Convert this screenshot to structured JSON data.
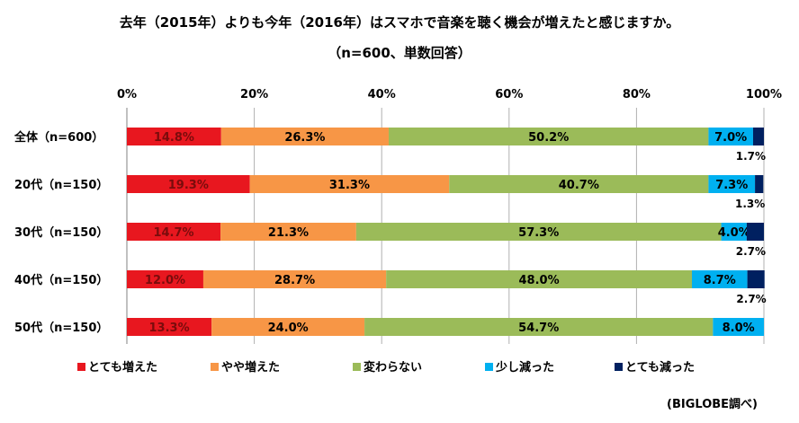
{
  "chart_data": {
    "type": "bar",
    "orientation": "horizontal-stacked-percent",
    "title": "去年（2015年）よりも今年（2016年）はスマホで音楽を聴く機会が増えたと感じますか。",
    "subtitle": "（n=600、単数回答）",
    "xlim": [
      0,
      100
    ],
    "x_ticks": [
      "0%",
      "20%",
      "40%",
      "60%",
      "80%",
      "100%"
    ],
    "grid": true,
    "legend_position": "bottom",
    "categories": [
      "全体（n=600）",
      "20代（n=150）",
      "30代（n=150）",
      "40代（n=150）",
      "50代（n=150）"
    ],
    "series": [
      {
        "name": "とても増えた",
        "color": "#e8171f",
        "values": [
          14.8,
          19.3,
          14.7,
          12.0,
          13.3
        ],
        "labels": [
          "14.8%",
          "19.3%",
          "14.7%",
          "12.0%",
          "13.3%"
        ]
      },
      {
        "name": "やや増えた",
        "color": "#f79646",
        "values": [
          26.3,
          31.3,
          21.3,
          28.7,
          24.0
        ],
        "labels": [
          "26.3%",
          "31.3%",
          "21.3%",
          "28.7%",
          "24.0%"
        ]
      },
      {
        "name": "変わらない",
        "color": "#9bbb59",
        "values": [
          50.2,
          40.7,
          57.3,
          48.0,
          54.7
        ],
        "labels": [
          "50.2%",
          "40.7%",
          "57.3%",
          "48.0%",
          "54.7%"
        ]
      },
      {
        "name": "少し減った",
        "color": "#00b0f0",
        "values": [
          7.0,
          7.3,
          4.0,
          8.7,
          8.0
        ],
        "labels": [
          "7.0%",
          "7.3%",
          "4.0%",
          "8.7%",
          "8.0%"
        ]
      },
      {
        "name": "とても減った",
        "color": "#002060",
        "values": [
          1.7,
          1.3,
          2.7,
          2.7,
          0
        ],
        "labels": [
          "1.7%",
          "1.3%",
          "2.7%",
          "2.7%",
          ""
        ]
      }
    ],
    "source": "(BIGLOBE調べ)"
  }
}
